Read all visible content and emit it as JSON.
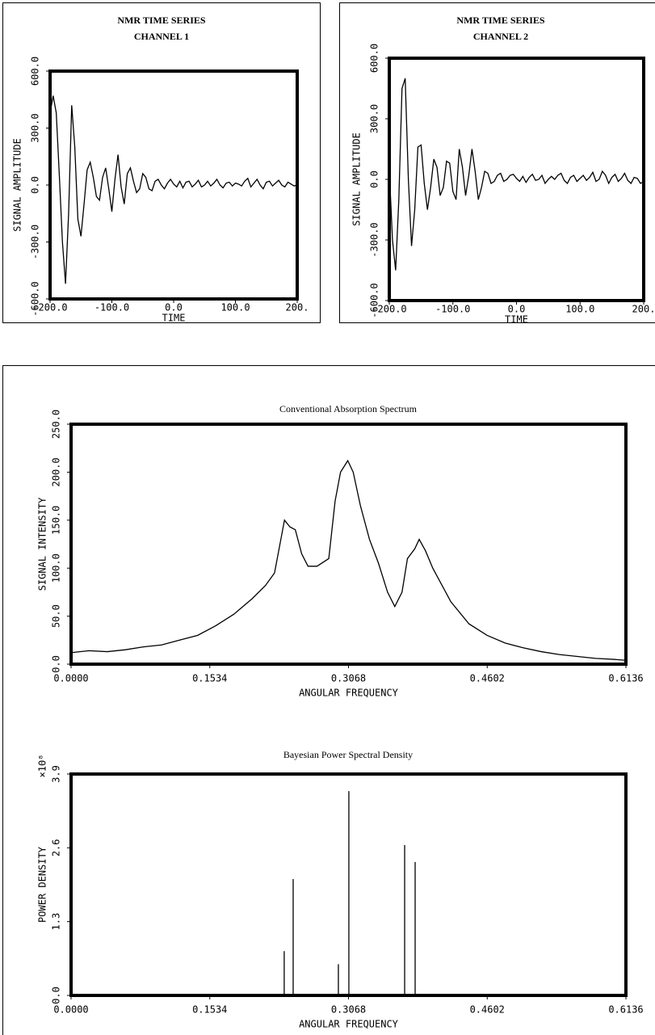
{
  "chart_data": [
    {
      "type": "line",
      "title": "NMR TIME SERIES",
      "subtitle": "CHANNEL 1",
      "x_label": "TIME",
      "y_label": "SIGNAL AMPLITUDE",
      "color": "#000000",
      "xlim": [
        -200,
        200
      ],
      "ylim": [
        -600,
        600
      ],
      "xticks": [
        {
          "value": -200,
          "label": "-200.0"
        },
        {
          "value": -100,
          "label": "-100.0"
        },
        {
          "value": 0,
          "label": "0.0"
        },
        {
          "value": 100,
          "label": "100.0"
        },
        {
          "value": 200,
          "label": "200."
        }
      ],
      "yticks": [
        {
          "value": -600,
          "label": "-600.0"
        },
        {
          "value": -300,
          "label": "-300.0"
        },
        {
          "value": 0,
          "label": "0.0"
        },
        {
          "value": 300,
          "label": "300.0"
        },
        {
          "value": 600,
          "label": "600.0"
        }
      ],
      "x": [
        -200,
        -195,
        -190,
        -185,
        -180,
        -175,
        -170,
        -165,
        -160,
        -155,
        -150,
        -145,
        -140,
        -135,
        -130,
        -125,
        -120,
        -115,
        -110,
        -105,
        -100,
        -95,
        -90,
        -85,
        -80,
        -75,
        -70,
        -65,
        -60,
        -55,
        -50,
        -45,
        -40,
        -35,
        -30,
        -25,
        -20,
        -15,
        -10,
        -5,
        0,
        5,
        10,
        15,
        20,
        25,
        30,
        35,
        40,
        45,
        50,
        55,
        60,
        65,
        70,
        75,
        80,
        85,
        90,
        95,
        100,
        105,
        110,
        115,
        120,
        125,
        130,
        135,
        140,
        145,
        150,
        155,
        160,
        165,
        170,
        175,
        180,
        185,
        190,
        195,
        200
      ],
      "values": [
        380,
        470,
        380,
        50,
        -300,
        -520,
        -150,
        420,
        200,
        -180,
        -270,
        -100,
        80,
        120,
        40,
        -60,
        -80,
        40,
        90,
        -20,
        -140,
        30,
        160,
        -10,
        -100,
        60,
        90,
        20,
        -40,
        -20,
        60,
        40,
        -20,
        -30,
        20,
        30,
        0,
        -20,
        10,
        30,
        5,
        -10,
        20,
        -15,
        15,
        20,
        -10,
        5,
        25,
        -10,
        0,
        20,
        -5,
        10,
        30,
        0,
        -15,
        10,
        15,
        -5,
        10,
        5,
        -5,
        20,
        35,
        -10,
        10,
        30,
        0,
        -20,
        15,
        20,
        -5,
        10,
        25,
        0,
        -10,
        15,
        5,
        -5,
        0
      ]
    },
    {
      "type": "line",
      "title": "NMR TIME SERIES",
      "subtitle": "CHANNEL 2",
      "x_label": "TIME",
      "y_label": "SIGNAL AMPLITUDE",
      "color": "#000000",
      "xlim": [
        -200,
        200
      ],
      "ylim": [
        -600,
        600
      ],
      "xticks": [
        {
          "value": -200,
          "label": "-200.0"
        },
        {
          "value": -100,
          "label": "-100.0"
        },
        {
          "value": 0,
          "label": "0.0"
        },
        {
          "value": 100,
          "label": "100.0"
        },
        {
          "value": 200,
          "label": "200."
        }
      ],
      "yticks": [
        {
          "value": -600,
          "label": "-600.0"
        },
        {
          "value": -300,
          "label": "-300.0"
        },
        {
          "value": 0,
          "label": "0.0"
        },
        {
          "value": 300,
          "label": "300.0"
        },
        {
          "value": 600,
          "label": "600.0"
        }
      ],
      "x": [
        -200,
        -195,
        -190,
        -185,
        -180,
        -175,
        -170,
        -165,
        -160,
        -155,
        -150,
        -145,
        -140,
        -135,
        -130,
        -125,
        -120,
        -115,
        -110,
        -105,
        -100,
        -95,
        -90,
        -85,
        -80,
        -75,
        -70,
        -65,
        -60,
        -55,
        -50,
        -45,
        -40,
        -35,
        -30,
        -25,
        -20,
        -15,
        -10,
        -5,
        0,
        5,
        10,
        15,
        20,
        25,
        30,
        35,
        40,
        45,
        50,
        55,
        60,
        65,
        70,
        75,
        80,
        85,
        90,
        95,
        100,
        105,
        110,
        115,
        120,
        125,
        130,
        135,
        140,
        145,
        150,
        155,
        160,
        165,
        170,
        175,
        180,
        185,
        190,
        195,
        200
      ],
      "values": [
        50,
        -300,
        -450,
        -100,
        450,
        500,
        0,
        -330,
        -150,
        160,
        170,
        -20,
        -150,
        -40,
        100,
        60,
        -80,
        -40,
        90,
        80,
        -60,
        -100,
        150,
        60,
        -80,
        20,
        150,
        40,
        -100,
        -40,
        40,
        30,
        -20,
        -10,
        20,
        30,
        -10,
        0,
        20,
        25,
        5,
        -10,
        15,
        -15,
        10,
        25,
        -5,
        0,
        20,
        -20,
        0,
        15,
        0,
        20,
        30,
        -5,
        -20,
        10,
        20,
        -10,
        5,
        20,
        -5,
        10,
        35,
        -10,
        0,
        40,
        20,
        -20,
        10,
        25,
        -10,
        5,
        30,
        -5,
        -20,
        10,
        5,
        -20,
        -10
      ]
    },
    {
      "type": "line",
      "title": "Conventional Absorption Spectrum",
      "x_label": "ANGULAR FREQUENCY",
      "y_label": "SIGNAL INTENSITY",
      "color": "#000000",
      "xlim": [
        0,
        0.6136
      ],
      "ylim": [
        0,
        250
      ],
      "xticks": [
        {
          "value": 0,
          "label": "0.0000"
        },
        0.1534,
        0.3068,
        0.4602,
        0.6136
      ],
      "yticks": [
        {
          "value": 0,
          "label": "0.0"
        },
        {
          "value": 50,
          "label": "50.0"
        },
        {
          "value": 100,
          "label": "100.0"
        },
        {
          "value": 150,
          "label": "150.0"
        },
        {
          "value": 200,
          "label": "200.0"
        },
        {
          "value": 250,
          "label": "250.0"
        }
      ],
      "x": [
        0,
        0.02,
        0.04,
        0.06,
        0.08,
        0.1,
        0.12,
        0.14,
        0.16,
        0.18,
        0.2,
        0.215,
        0.225,
        0.232,
        0.236,
        0.242,
        0.248,
        0.255,
        0.262,
        0.272,
        0.285,
        0.292,
        0.298,
        0.306,
        0.312,
        0.32,
        0.33,
        0.34,
        0.35,
        0.358,
        0.366,
        0.372,
        0.38,
        0.385,
        0.392,
        0.4,
        0.42,
        0.44,
        0.46,
        0.48,
        0.5,
        0.52,
        0.54,
        0.56,
        0.58,
        0.6,
        0.6136
      ],
      "values": [
        12,
        14,
        13,
        15,
        18,
        20,
        25,
        30,
        40,
        52,
        68,
        82,
        95,
        130,
        150,
        143,
        140,
        115,
        102,
        102,
        110,
        170,
        200,
        212,
        200,
        165,
        130,
        105,
        75,
        60,
        75,
        110,
        120,
        130,
        118,
        100,
        65,
        42,
        30,
        22,
        17,
        13,
        10,
        8,
        6,
        5,
        4
      ]
    },
    {
      "type": "stem",
      "title": "Bayesian Power Spectral Density",
      "x_label": "ANGULAR FREQUENCY",
      "y_label": "POWER DENSITY",
      "y_multiplier": "×10⁸",
      "color": "#000000",
      "xlim": [
        0,
        0.6136
      ],
      "ylim": [
        0,
        3.9
      ],
      "xticks": [
        {
          "value": 0,
          "label": "0.0000"
        },
        0.1534,
        0.3068,
        0.4602,
        0.6136
      ],
      "yticks": [
        {
          "value": 0,
          "label": "0.0"
        },
        1.3,
        2.6,
        3.9
      ],
      "x": [
        0.2357,
        0.2456,
        0.2956,
        0.3072,
        0.3689,
        0.3805
      ],
      "values": [
        0.78,
        2.05,
        0.55,
        3.6,
        2.65,
        2.35
      ]
    }
  ]
}
